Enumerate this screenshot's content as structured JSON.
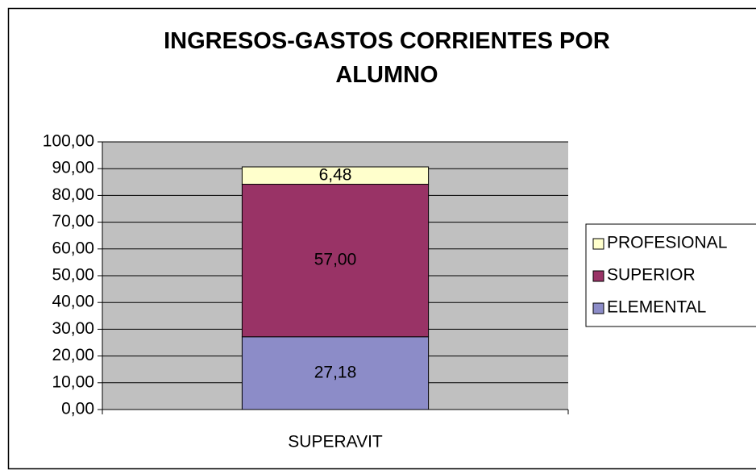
{
  "chart_data": {
    "type": "bar",
    "stacked": true,
    "title": "INGRESOS-GASTOS CORRIENTES POR ALUMNO",
    "categories": [
      "SUPERAVIT"
    ],
    "series": [
      {
        "name": "ELEMENTAL",
        "color": "#8c8cc8",
        "values": [
          27.18
        ],
        "value_labels": [
          "27,18"
        ]
      },
      {
        "name": "SUPERIOR",
        "color": "#993366",
        "values": [
          57.0
        ],
        "value_labels": [
          "57,00"
        ]
      },
      {
        "name": "PROFESIONAL",
        "color": "#ffffcc",
        "values": [
          6.48
        ],
        "value_labels": [
          "6,48"
        ]
      }
    ],
    "ylim": [
      0,
      100
    ],
    "yticks": [
      {
        "value": 0,
        "label": "0,00"
      },
      {
        "value": 10,
        "label": "10,00"
      },
      {
        "value": 20,
        "label": "20,00"
      },
      {
        "value": 30,
        "label": "30,00"
      },
      {
        "value": 40,
        "label": "40,00"
      },
      {
        "value": 50,
        "label": "50,00"
      },
      {
        "value": 60,
        "label": "60,00"
      },
      {
        "value": 70,
        "label": "70,00"
      },
      {
        "value": 80,
        "label": "80,00"
      },
      {
        "value": 90,
        "label": "90,00"
      },
      {
        "value": 100,
        "label": "100,00"
      }
    ],
    "grid": true,
    "legend": "right",
    "plot_background": "#c0c0c0"
  }
}
